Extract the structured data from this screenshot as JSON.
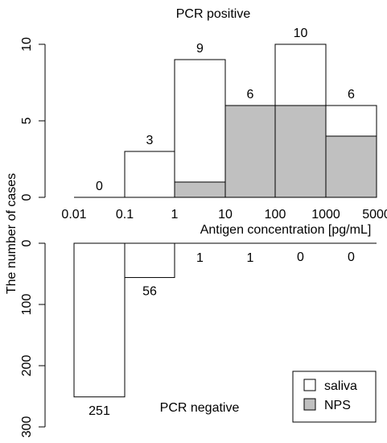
{
  "chart_data": [
    {
      "type": "bar",
      "title": "PCR positive",
      "xlabel": "Antigen concentration [pg/mL]",
      "ylabel": "The number of cases",
      "x_tick_labels": [
        "0.01",
        "0.1",
        "1",
        "10",
        "100",
        "1000",
        "5000"
      ],
      "bins": [
        "0.01-0.1",
        "0.1-1",
        "1-10",
        "10-100",
        "100-1000",
        "1000-5000"
      ],
      "series": [
        {
          "name": "saliva",
          "values": [
            0,
            3,
            9,
            6,
            10,
            6
          ],
          "color": "#ffffff"
        },
        {
          "name": "NPS",
          "values": [
            0,
            0,
            1,
            6,
            6,
            4
          ],
          "color": "#c0c0c0"
        }
      ],
      "data_labels": [
        "0",
        "3",
        "9",
        "6",
        "10",
        "6"
      ],
      "y_ticks": [
        "0",
        "5",
        "10"
      ],
      "ylim": [
        0,
        10
      ]
    },
    {
      "type": "bar",
      "title": "PCR negative",
      "bins": [
        "0.01-0.1",
        "0.1-1",
        "1-10",
        "10-100",
        "100-1000",
        "1000-5000"
      ],
      "series": [
        {
          "name": "saliva",
          "values": [
            251,
            56,
            1,
            1,
            0,
            0
          ],
          "color": "#ffffff"
        },
        {
          "name": "NPS",
          "values": [
            0,
            0,
            0,
            0,
            0,
            0
          ],
          "color": "#c0c0c0"
        }
      ],
      "data_labels": [
        "251",
        "56",
        "1",
        "1",
        "0",
        "0"
      ],
      "y_ticks": [
        "0",
        "100",
        "200",
        "300"
      ],
      "ylim": [
        0,
        300
      ],
      "y_axis_inverted": true
    }
  ],
  "legend": {
    "placement": "bottom-right",
    "items": [
      {
        "label": "saliva",
        "color": "#ffffff"
      },
      {
        "label": "NPS",
        "color": "#c0c0c0"
      }
    ]
  }
}
